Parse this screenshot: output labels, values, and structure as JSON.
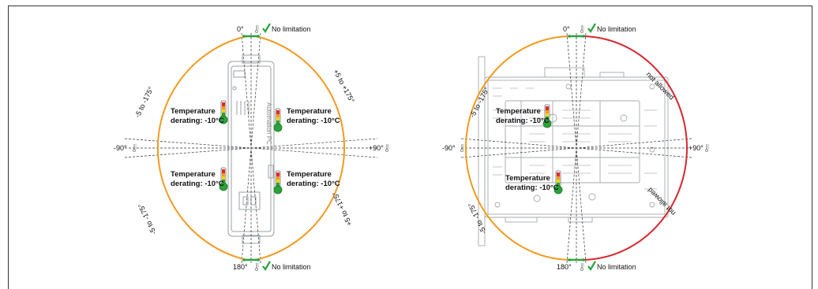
{
  "colors": {
    "allowed": "#f39a1f",
    "not_allowed": "#d9272e",
    "no_limit": "#2aa33a",
    "device_stroke": "#9aa0a4",
    "therm_red": "#e02b24",
    "therm_yellow": "#f4d400",
    "therm_green": "#2aa33a"
  },
  "left_diagram": {
    "top_angle": "0°",
    "bottom_angle": "180°",
    "left_angle": "-90°",
    "right_angle": "+90°",
    "no_limit_top": "No limitation",
    "no_limit_bottom": "No limitation",
    "arc_top_left": "-5 to -175°",
    "arc_top_right": "+5 to +175°",
    "arc_bottom_left": "-5 to -175°",
    "arc_bottom_right": "+5 to +175°",
    "device_brand": "Automation PC",
    "derating": [
      {
        "line1": "Temperature",
        "line2": "derating: -10°C"
      },
      {
        "line1": "Temperature",
        "line2": "derating: -10°C"
      },
      {
        "line1": "Temperature",
        "line2": "derating: -10°C"
      },
      {
        "line1": "Temperature",
        "line2": "derating: -10°C"
      }
    ]
  },
  "right_diagram": {
    "top_angle": "0°",
    "bottom_angle": "180°",
    "left_angle": "-90°",
    "right_angle": "+90°",
    "no_limit_top": "No limitation",
    "no_limit_bottom": "No limitation",
    "arc_top_left": "-5 to -175°",
    "arc_bottom_left": "-5 to -175°",
    "arc_top_right": "not allowed",
    "arc_bottom_right": "not allowed",
    "derating": [
      {
        "line1": "Temperature",
        "line2": "derating: -10°C"
      },
      {
        "line1": "Temperature",
        "line2": "derating: -10°C"
      }
    ]
  }
}
